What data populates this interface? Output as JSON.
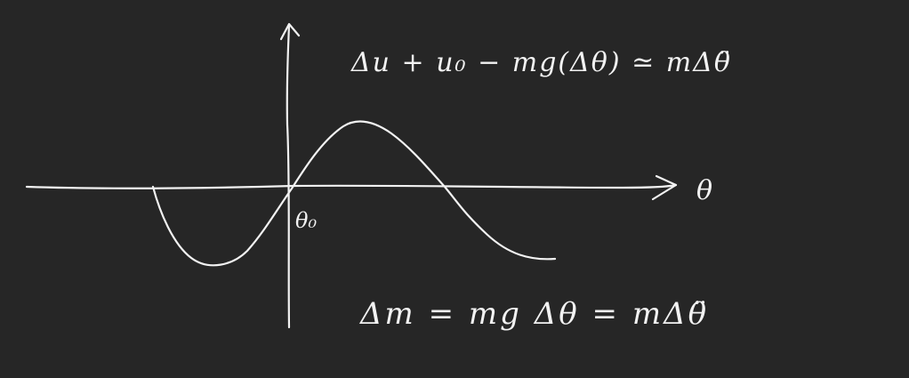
{
  "canvas": {
    "background": "#262626",
    "ink": "#f2f2f2"
  },
  "axes": {
    "x_label": "θ",
    "origin_label": "θ₀"
  },
  "equations": {
    "top": "Δu + u₀ − mg(Δθ) ≃ mΔθ̈",
    "bottom": "Δm = mg Δθ = mΔθ̈"
  }
}
